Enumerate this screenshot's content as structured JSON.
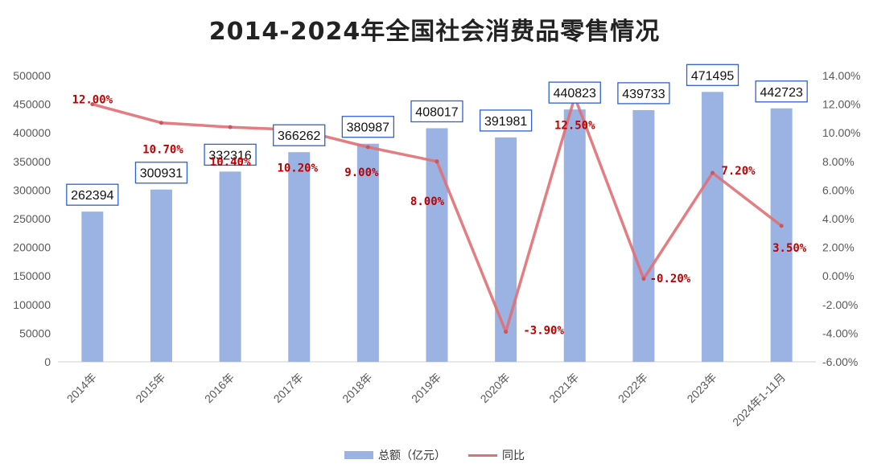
{
  "chart_data": {
    "type": "bar",
    "title": "2014-2024年全国社会消费品零售情况",
    "categories": [
      "2014年",
      "2015年",
      "2016年",
      "2017年",
      "2018年",
      "2019年",
      "2020年",
      "2021年",
      "2022年",
      "2023年",
      "2024年1-11月"
    ],
    "series": [
      {
        "name": "总额（亿元）",
        "type": "bar",
        "axis": "left",
        "color": "#9ab3e3",
        "values": [
          262394,
          300931,
          332316,
          366262,
          380987,
          408017,
          391981,
          440823,
          439733,
          471495,
          442723
        ],
        "labels": [
          "262394",
          "300931",
          "332316",
          "366262",
          "380987",
          "408017",
          "391981",
          "440823",
          "439733",
          "471495",
          "442723"
        ]
      },
      {
        "name": "同比",
        "type": "line",
        "axis": "right",
        "color": "#e06f74",
        "values": [
          12.0,
          10.7,
          10.4,
          10.2,
          9.0,
          8.0,
          -3.9,
          12.5,
          -0.2,
          7.2,
          3.5
        ],
        "labels": [
          "12.00%",
          "10.70%",
          "10.40%",
          "10.20%",
          "9.00%",
          "8.00%",
          "-3.90%",
          "12.50%",
          "-0.20%",
          "7.20%",
          "3.50%"
        ]
      }
    ],
    "yleft": {
      "lim": [
        0,
        500000
      ],
      "ticks": [
        "0",
        "50000",
        "100000",
        "150000",
        "200000",
        "250000",
        "300000",
        "350000",
        "400000",
        "450000",
        "500000"
      ]
    },
    "yright": {
      "lim": [
        -6,
        14
      ],
      "ticks": [
        "-6.00%",
        "-4.00%",
        "-2.00%",
        "0.00%",
        "2.00%",
        "4.00%",
        "6.00%",
        "8.00%",
        "10.00%",
        "12.00%",
        "14.00%"
      ]
    },
    "grid": false,
    "legend": "bottom-center"
  }
}
